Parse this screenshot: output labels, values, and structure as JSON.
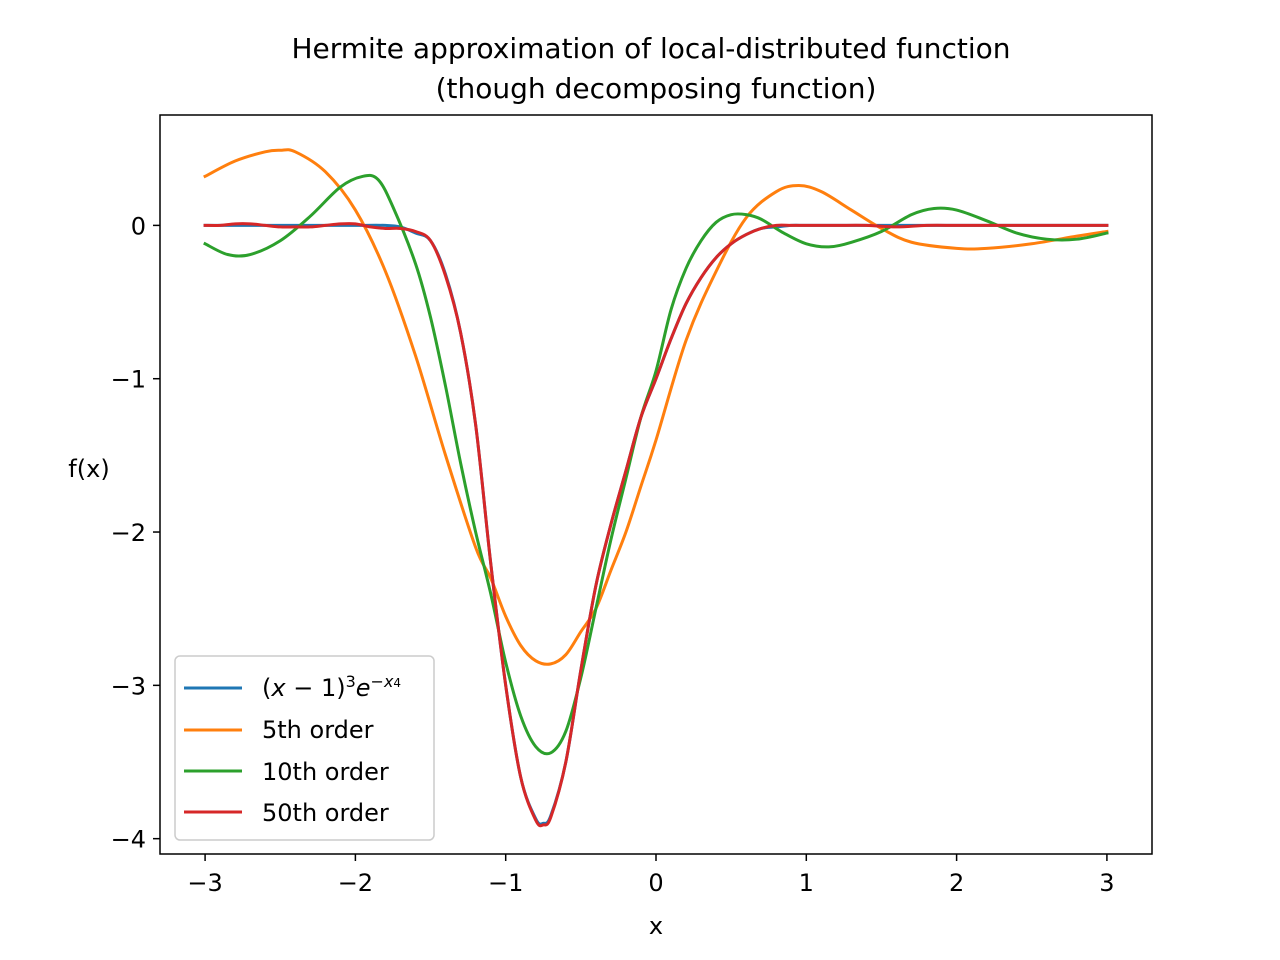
{
  "chart_data": {
    "type": "line",
    "title": "Hermite approximation of local-distributed function",
    "subtitle": "(though decomposing function)",
    "xlabel": "x",
    "ylabel": "f(x)",
    "xlim": [
      -3.3,
      3.3
    ],
    "ylim": [
      -4.1,
      0.72
    ],
    "xticks": [
      {
        "value": -3,
        "label": "−3"
      },
      {
        "value": -2,
        "label": "−2"
      },
      {
        "value": -1,
        "label": "−1"
      },
      {
        "value": 0,
        "label": "0"
      },
      {
        "value": 1,
        "label": "1"
      },
      {
        "value": 2,
        "label": "2"
      },
      {
        "value": 3,
        "label": "3"
      }
    ],
    "yticks": [
      {
        "value": 0,
        "label": "0"
      },
      {
        "value": -1,
        "label": "−1"
      },
      {
        "value": -2,
        "label": "−2"
      },
      {
        "value": -3,
        "label": "−3"
      },
      {
        "value": -4,
        "label": "−4"
      }
    ],
    "grid": false,
    "legend_position": "lower-left",
    "series": [
      {
        "name": "(x − 1)³e^(−x⁴)",
        "color": "#1f77b4",
        "points": [
          [
            -3.0,
            0.0
          ],
          [
            -2.8,
            0.0
          ],
          [
            -2.6,
            0.0
          ],
          [
            -2.4,
            0.0
          ],
          [
            -2.2,
            0.0
          ],
          [
            -2.0,
            0.0
          ],
          [
            -1.8,
            -0.0
          ],
          [
            -1.7,
            -0.01
          ],
          [
            -1.6,
            -0.05
          ],
          [
            -1.5,
            -0.1
          ],
          [
            -1.4,
            -0.32
          ],
          [
            -1.3,
            -0.7
          ],
          [
            -1.2,
            -1.3
          ],
          [
            -1.1,
            -2.2
          ],
          [
            -1.0,
            -3.0
          ],
          [
            -0.9,
            -3.6
          ],
          [
            -0.8,
            -3.87
          ],
          [
            -0.75,
            -3.9
          ],
          [
            -0.7,
            -3.85
          ],
          [
            -0.6,
            -3.5
          ],
          [
            -0.5,
            -2.9
          ],
          [
            -0.4,
            -2.35
          ],
          [
            -0.3,
            -1.95
          ],
          [
            -0.2,
            -1.6
          ],
          [
            -0.1,
            -1.25
          ],
          [
            0.0,
            -1.0
          ],
          [
            0.1,
            -0.74
          ],
          [
            0.2,
            -0.51
          ],
          [
            0.3,
            -0.34
          ],
          [
            0.4,
            -0.21
          ],
          [
            0.5,
            -0.12
          ],
          [
            0.6,
            -0.06
          ],
          [
            0.7,
            -0.02
          ],
          [
            0.8,
            -0.01
          ],
          [
            0.9,
            0.0
          ],
          [
            1.0,
            0.0
          ],
          [
            1.2,
            0.0
          ],
          [
            1.5,
            0.0
          ],
          [
            2.0,
            0.0
          ],
          [
            2.5,
            0.0
          ],
          [
            3.0,
            0.0
          ]
        ]
      },
      {
        "name": "5th order",
        "color": "#ff7f0e",
        "points": [
          [
            -3.0,
            0.32
          ],
          [
            -2.8,
            0.42
          ],
          [
            -2.6,
            0.48
          ],
          [
            -2.5,
            0.49
          ],
          [
            -2.4,
            0.48
          ],
          [
            -2.2,
            0.35
          ],
          [
            -2.0,
            0.1
          ],
          [
            -1.8,
            -0.3
          ],
          [
            -1.6,
            -0.85
          ],
          [
            -1.4,
            -1.5
          ],
          [
            -1.2,
            -2.1
          ],
          [
            -1.1,
            -2.3
          ],
          [
            -1.0,
            -2.55
          ],
          [
            -0.9,
            -2.74
          ],
          [
            -0.8,
            -2.84
          ],
          [
            -0.7,
            -2.86
          ],
          [
            -0.6,
            -2.8
          ],
          [
            -0.5,
            -2.65
          ],
          [
            -0.4,
            -2.5
          ],
          [
            -0.3,
            -2.25
          ],
          [
            -0.2,
            -2.0
          ],
          [
            -0.1,
            -1.7
          ],
          [
            0.0,
            -1.4
          ],
          [
            0.2,
            -0.75
          ],
          [
            0.4,
            -0.3
          ],
          [
            0.6,
            0.05
          ],
          [
            0.8,
            0.22
          ],
          [
            0.95,
            0.26
          ],
          [
            1.1,
            0.22
          ],
          [
            1.3,
            0.1
          ],
          [
            1.5,
            -0.02
          ],
          [
            1.7,
            -0.11
          ],
          [
            2.0,
            -0.15
          ],
          [
            2.2,
            -0.15
          ],
          [
            2.5,
            -0.12
          ],
          [
            2.8,
            -0.07
          ],
          [
            3.0,
            -0.04
          ]
        ]
      },
      {
        "name": "10th order",
        "color": "#2ca02c",
        "points": [
          [
            -3.0,
            -0.12
          ],
          [
            -2.85,
            -0.19
          ],
          [
            -2.7,
            -0.19
          ],
          [
            -2.5,
            -0.1
          ],
          [
            -2.3,
            0.06
          ],
          [
            -2.1,
            0.25
          ],
          [
            -1.95,
            0.32
          ],
          [
            -1.85,
            0.3
          ],
          [
            -1.75,
            0.12
          ],
          [
            -1.6,
            -0.25
          ],
          [
            -1.5,
            -0.6
          ],
          [
            -1.4,
            -1.05
          ],
          [
            -1.3,
            -1.55
          ],
          [
            -1.2,
            -2.0
          ],
          [
            -1.1,
            -2.4
          ],
          [
            -1.0,
            -2.85
          ],
          [
            -0.9,
            -3.2
          ],
          [
            -0.8,
            -3.4
          ],
          [
            -0.7,
            -3.44
          ],
          [
            -0.6,
            -3.3
          ],
          [
            -0.5,
            -2.95
          ],
          [
            -0.4,
            -2.5
          ],
          [
            -0.3,
            -2.05
          ],
          [
            -0.2,
            -1.65
          ],
          [
            -0.1,
            -1.25
          ],
          [
            0.0,
            -0.95
          ],
          [
            0.1,
            -0.55
          ],
          [
            0.2,
            -0.28
          ],
          [
            0.3,
            -0.1
          ],
          [
            0.4,
            0.02
          ],
          [
            0.5,
            0.07
          ],
          [
            0.6,
            0.07
          ],
          [
            0.7,
            0.04
          ],
          [
            0.85,
            -0.05
          ],
          [
            1.0,
            -0.12
          ],
          [
            1.15,
            -0.14
          ],
          [
            1.3,
            -0.11
          ],
          [
            1.5,
            -0.04
          ],
          [
            1.7,
            0.07
          ],
          [
            1.85,
            0.11
          ],
          [
            2.0,
            0.1
          ],
          [
            2.2,
            0.03
          ],
          [
            2.4,
            -0.05
          ],
          [
            2.6,
            -0.09
          ],
          [
            2.8,
            -0.09
          ],
          [
            3.0,
            -0.05
          ]
        ]
      },
      {
        "name": "50th order",
        "color": "#d62728",
        "points": [
          [
            -3.0,
            0.0
          ],
          [
            -2.9,
            0.0
          ],
          [
            -2.8,
            0.01
          ],
          [
            -2.7,
            0.01
          ],
          [
            -2.6,
            0.0
          ],
          [
            -2.5,
            -0.01
          ],
          [
            -2.4,
            -0.01
          ],
          [
            -2.3,
            -0.01
          ],
          [
            -2.2,
            0.0
          ],
          [
            -2.1,
            0.01
          ],
          [
            -2.0,
            0.01
          ],
          [
            -1.9,
            -0.01
          ],
          [
            -1.8,
            -0.02
          ],
          [
            -1.7,
            -0.02
          ],
          [
            -1.6,
            -0.04
          ],
          [
            -1.5,
            -0.1
          ],
          [
            -1.4,
            -0.33
          ],
          [
            -1.3,
            -0.7
          ],
          [
            -1.2,
            -1.3
          ],
          [
            -1.1,
            -2.2
          ],
          [
            -1.0,
            -3.0
          ],
          [
            -0.9,
            -3.6
          ],
          [
            -0.8,
            -3.88
          ],
          [
            -0.75,
            -3.91
          ],
          [
            -0.7,
            -3.86
          ],
          [
            -0.6,
            -3.5
          ],
          [
            -0.5,
            -2.9
          ],
          [
            -0.4,
            -2.35
          ],
          [
            -0.3,
            -1.95
          ],
          [
            -0.2,
            -1.6
          ],
          [
            -0.1,
            -1.25
          ],
          [
            0.0,
            -1.0
          ],
          [
            0.1,
            -0.74
          ],
          [
            0.2,
            -0.51
          ],
          [
            0.3,
            -0.34
          ],
          [
            0.4,
            -0.21
          ],
          [
            0.5,
            -0.12
          ],
          [
            0.6,
            -0.06
          ],
          [
            0.7,
            -0.02
          ],
          [
            0.8,
            -0.0
          ],
          [
            0.9,
            0.0
          ],
          [
            1.0,
            0.0
          ],
          [
            1.2,
            0.0
          ],
          [
            1.4,
            0.0
          ],
          [
            1.6,
            -0.01
          ],
          [
            1.8,
            0.0
          ],
          [
            2.0,
            0.0
          ],
          [
            2.2,
            0.0
          ],
          [
            2.4,
            0.0
          ],
          [
            2.6,
            0.0
          ],
          [
            2.8,
            0.0
          ],
          [
            3.0,
            0.0
          ]
        ]
      }
    ]
  }
}
